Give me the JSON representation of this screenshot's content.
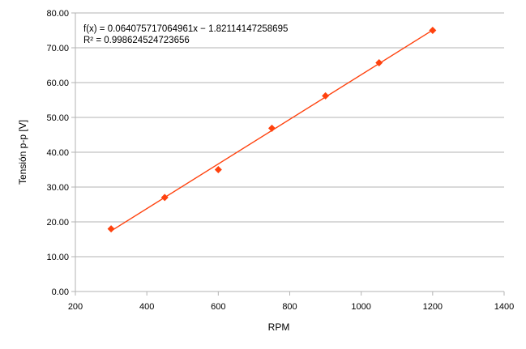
{
  "chart_data": {
    "type": "scatter",
    "xlabel": "RPM",
    "ylabel": "Tensión p-p [V]",
    "xlim": [
      200,
      1400
    ],
    "ylim": [
      0,
      80
    ],
    "x_ticks": [
      200,
      400,
      600,
      800,
      1000,
      1200,
      1400
    ],
    "y_ticks": [
      "0.00",
      "10.00",
      "20.00",
      "30.00",
      "40.00",
      "50.00",
      "60.00",
      "70.00",
      "80.00"
    ],
    "grid": "horizontal",
    "series": [
      {
        "x": [
          300,
          450,
          600,
          750,
          900,
          1050,
          1200
        ],
        "y": [
          18.0,
          27.0,
          35.0,
          46.9,
          56.2,
          65.7,
          75.0
        ],
        "marker": "diamond",
        "color": "#ff420e"
      }
    ],
    "trendline": {
      "type": "linear",
      "slope": 0.064075717064961,
      "intercept": -1.82114147258695,
      "color": "#ff420e"
    },
    "annotations": [
      "f(x) = 0.064075717064961x − 1.82114147258695",
      "R² = 0.998624524723656"
    ]
  }
}
